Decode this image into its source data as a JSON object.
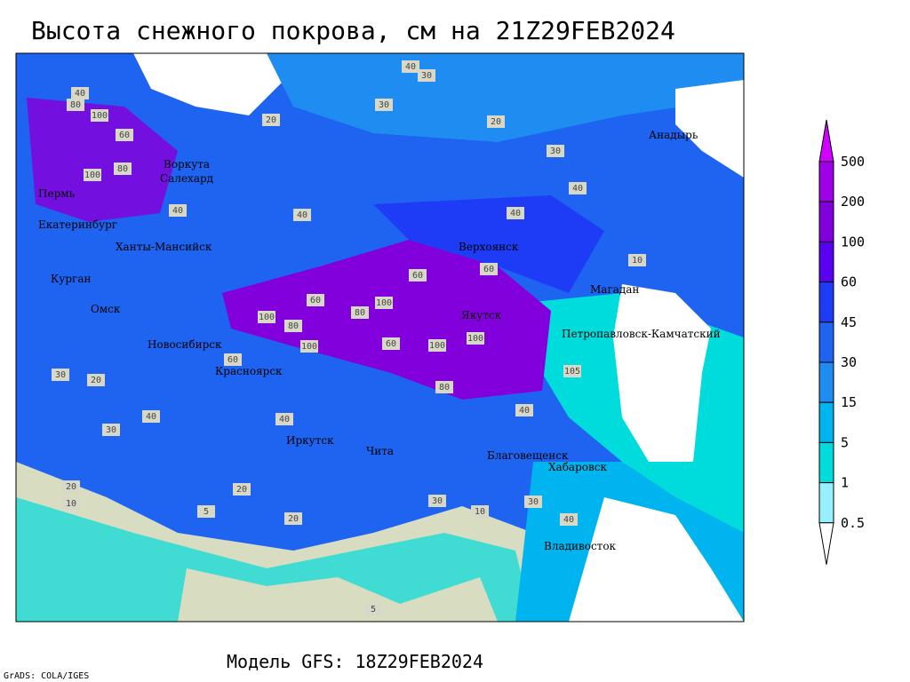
{
  "header": {
    "title": "Высота снежного покрова, см на 21Z29FEB2024"
  },
  "footer": {
    "model": "Модель GFS: 18Z29FEB2024",
    "credit": "GrADS: COLA/IGES"
  },
  "legend": {
    "levels": [
      500,
      200,
      100,
      60,
      45,
      30,
      15,
      5,
      1,
      0.5
    ],
    "colors": [
      "#d200ff",
      "#a000e6",
      "#8200dc",
      "#5a00f0",
      "#1e3cf5",
      "#1e64f0",
      "#1e8cf0",
      "#00b4f0",
      "#00dcdc",
      "#96f0ff",
      "#ffffff"
    ]
  },
  "cities": [
    "Воркута",
    "Салехард",
    "Пермь",
    "Екатеринбург",
    "Ханты-Мансийск",
    "Курган",
    "Омск",
    "Новосибирск",
    "Красноярск",
    "Иркутск",
    "Чита",
    "Благовещенск",
    "Хабаровск",
    "Владивосток",
    "Якутск",
    "Верхоянск",
    "Магадан",
    "Петропавловск-Камчатский",
    "Анадырь"
  ],
  "contour_labels": [
    40,
    30,
    30,
    20,
    40,
    80,
    100,
    60,
    80,
    100,
    40,
    40,
    80,
    100,
    60,
    100,
    80,
    60,
    100,
    60,
    100,
    80,
    100,
    40,
    60,
    40,
    30,
    20,
    30,
    40,
    20,
    20,
    20,
    30,
    40,
    10,
    40,
    30,
    20,
    5,
    5,
    30,
    10,
    40,
    60,
    10,
    105
  ]
}
